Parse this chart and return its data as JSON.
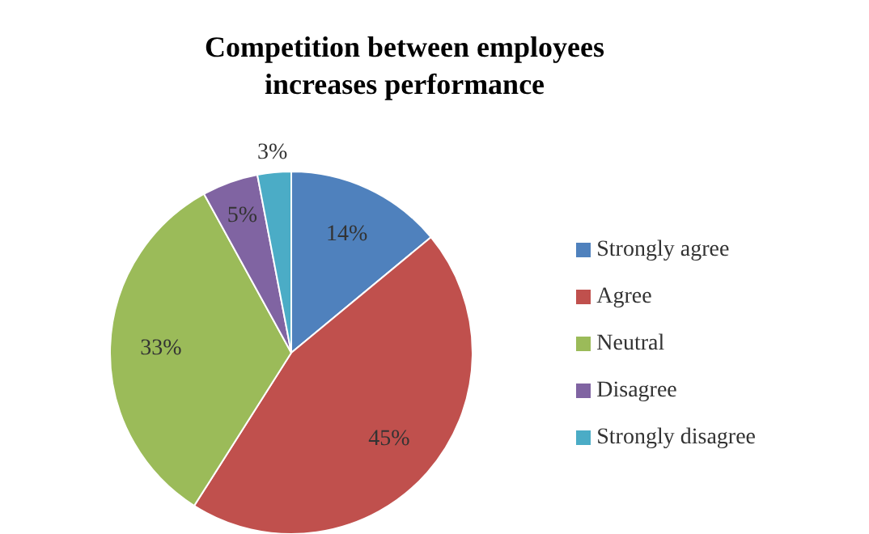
{
  "chart_data": {
    "type": "pie",
    "title": "Competition between employees increases performance",
    "categories": [
      "Strongly agree",
      "Agree",
      "Neutral",
      "Disagree",
      "Strongly disagree"
    ],
    "values": [
      14,
      45,
      33,
      5,
      3
    ],
    "colors": [
      "#4f81bd",
      "#c0504d",
      "#9bbb59",
      "#8064a2",
      "#4bacc6"
    ],
    "value_labels": [
      "14%",
      "45%",
      "33%",
      "5%",
      "3%"
    ],
    "legend": "right"
  }
}
